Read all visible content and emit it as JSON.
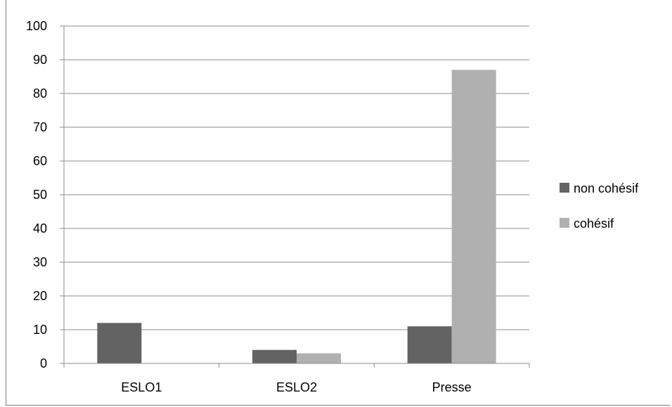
{
  "chart_data": {
    "type": "bar",
    "categories": [
      "ESLO1",
      "ESLO2",
      "Presse"
    ],
    "series": [
      {
        "name": "non cohésif",
        "color": "#636363",
        "values": [
          12,
          4,
          11
        ]
      },
      {
        "name": "cohésif",
        "color": "#b0b0b0",
        "values": [
          0,
          3,
          87
        ]
      }
    ],
    "title": "",
    "xlabel": "",
    "ylabel": "",
    "ylim": [
      0,
      100
    ],
    "yticks": [
      0,
      10,
      20,
      30,
      40,
      50,
      60,
      70,
      80,
      90,
      100
    ],
    "grid": true,
    "legend": "right"
  }
}
